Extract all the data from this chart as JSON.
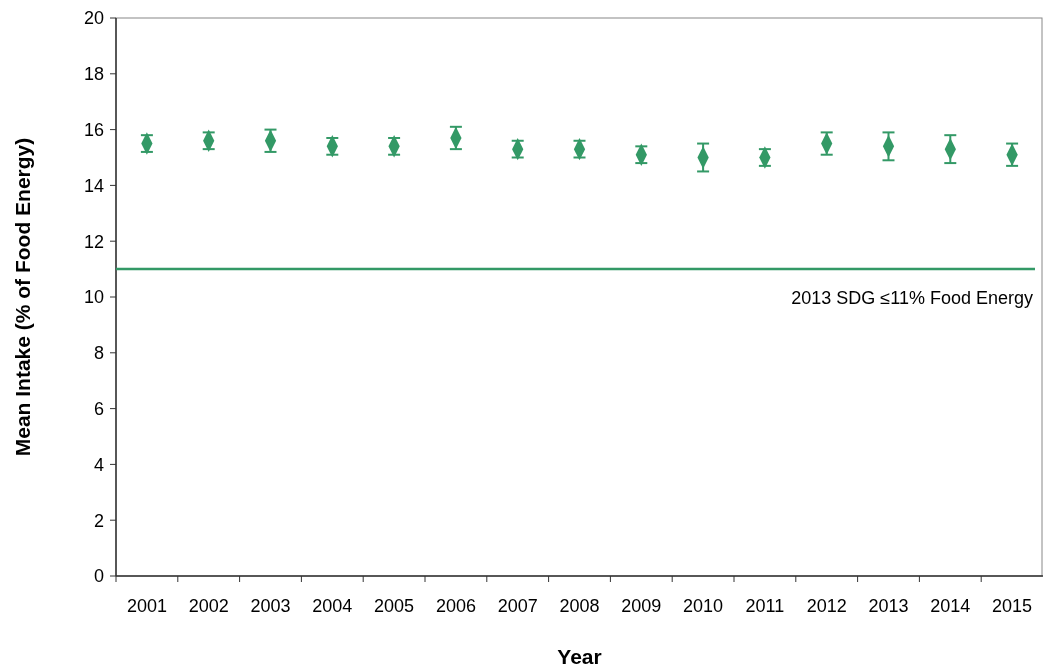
{
  "chart_data": {
    "type": "scatter",
    "xlabel": "Year",
    "ylabel": "Mean Intake (% of Food Energy)",
    "categories": [
      "2001",
      "2002",
      "2003",
      "2004",
      "2005",
      "2006",
      "2007",
      "2008",
      "2009",
      "2010",
      "2011",
      "2012",
      "2013",
      "2014",
      "2015"
    ],
    "series": [
      {
        "color": "#339966",
        "values": [
          15.5,
          15.6,
          15.6,
          15.4,
          15.4,
          15.7,
          15.3,
          15.3,
          15.1,
          15.0,
          15.0,
          15.5,
          15.4,
          15.3,
          15.1
        ],
        "errors": [
          0.3,
          0.3,
          0.4,
          0.3,
          0.3,
          0.4,
          0.3,
          0.3,
          0.3,
          0.5,
          0.3,
          0.4,
          0.5,
          0.5,
          0.4
        ]
      }
    ],
    "marker": "diamond",
    "ylim": [
      0,
      20
    ],
    "yticks": [
      0,
      2,
      4,
      6,
      8,
      10,
      12,
      14,
      16,
      18,
      20
    ],
    "grid": false,
    "ref_lines": [
      {
        "axis": "y",
        "value": 11,
        "label": "2013 SDG ≤11% Food Energy",
        "color": "#339966"
      }
    ]
  }
}
